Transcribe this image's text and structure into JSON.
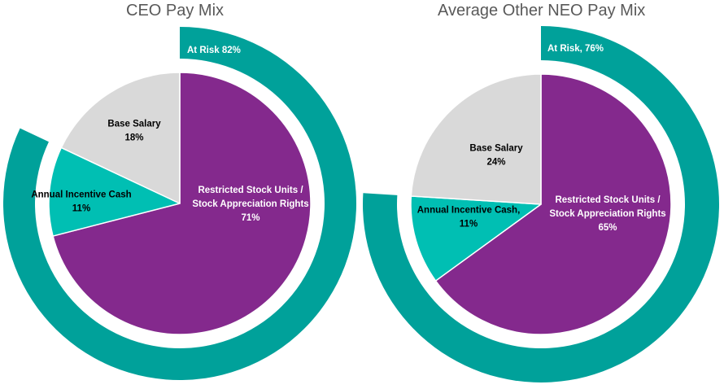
{
  "chart_data": [
    {
      "type": "pie",
      "title": "CEO Pay Mix",
      "inner": {
        "slices": [
          {
            "label": "Restricted Stock Units /",
            "label2": "Stock Appreciation Rights",
            "value": 71,
            "value_label": "71%",
            "color": "#84298d"
          },
          {
            "label": "Annual Incentive Cash",
            "label2": "",
            "value": 11,
            "value_label": "11%",
            "color": "#00bfb3"
          },
          {
            "label": "Base Salary",
            "label2": "",
            "value": 18,
            "value_label": "18%",
            "color": "#d9d9d9"
          }
        ]
      },
      "outer": {
        "label": "At Risk 82%",
        "value": 82,
        "color": "#00a19a"
      }
    },
    {
      "type": "pie",
      "title": "Average Other NEO Pay Mix",
      "inner": {
        "slices": [
          {
            "label": "Restricted Stock Units /",
            "label2": "Stock Appreciation Rights",
            "value": 65,
            "value_label": "65%",
            "color": "#84298d"
          },
          {
            "label": "Annual Incentive Cash,",
            "label2": "",
            "value": 11,
            "value_label": "11%",
            "color": "#00bfb3"
          },
          {
            "label": "Base Salary",
            "label2": "",
            "value": 24,
            "value_label": "24%",
            "color": "#d9d9d9"
          }
        ]
      },
      "outer": {
        "label": "At Risk, 76%",
        "value": 76,
        "color": "#00a19a"
      }
    }
  ]
}
